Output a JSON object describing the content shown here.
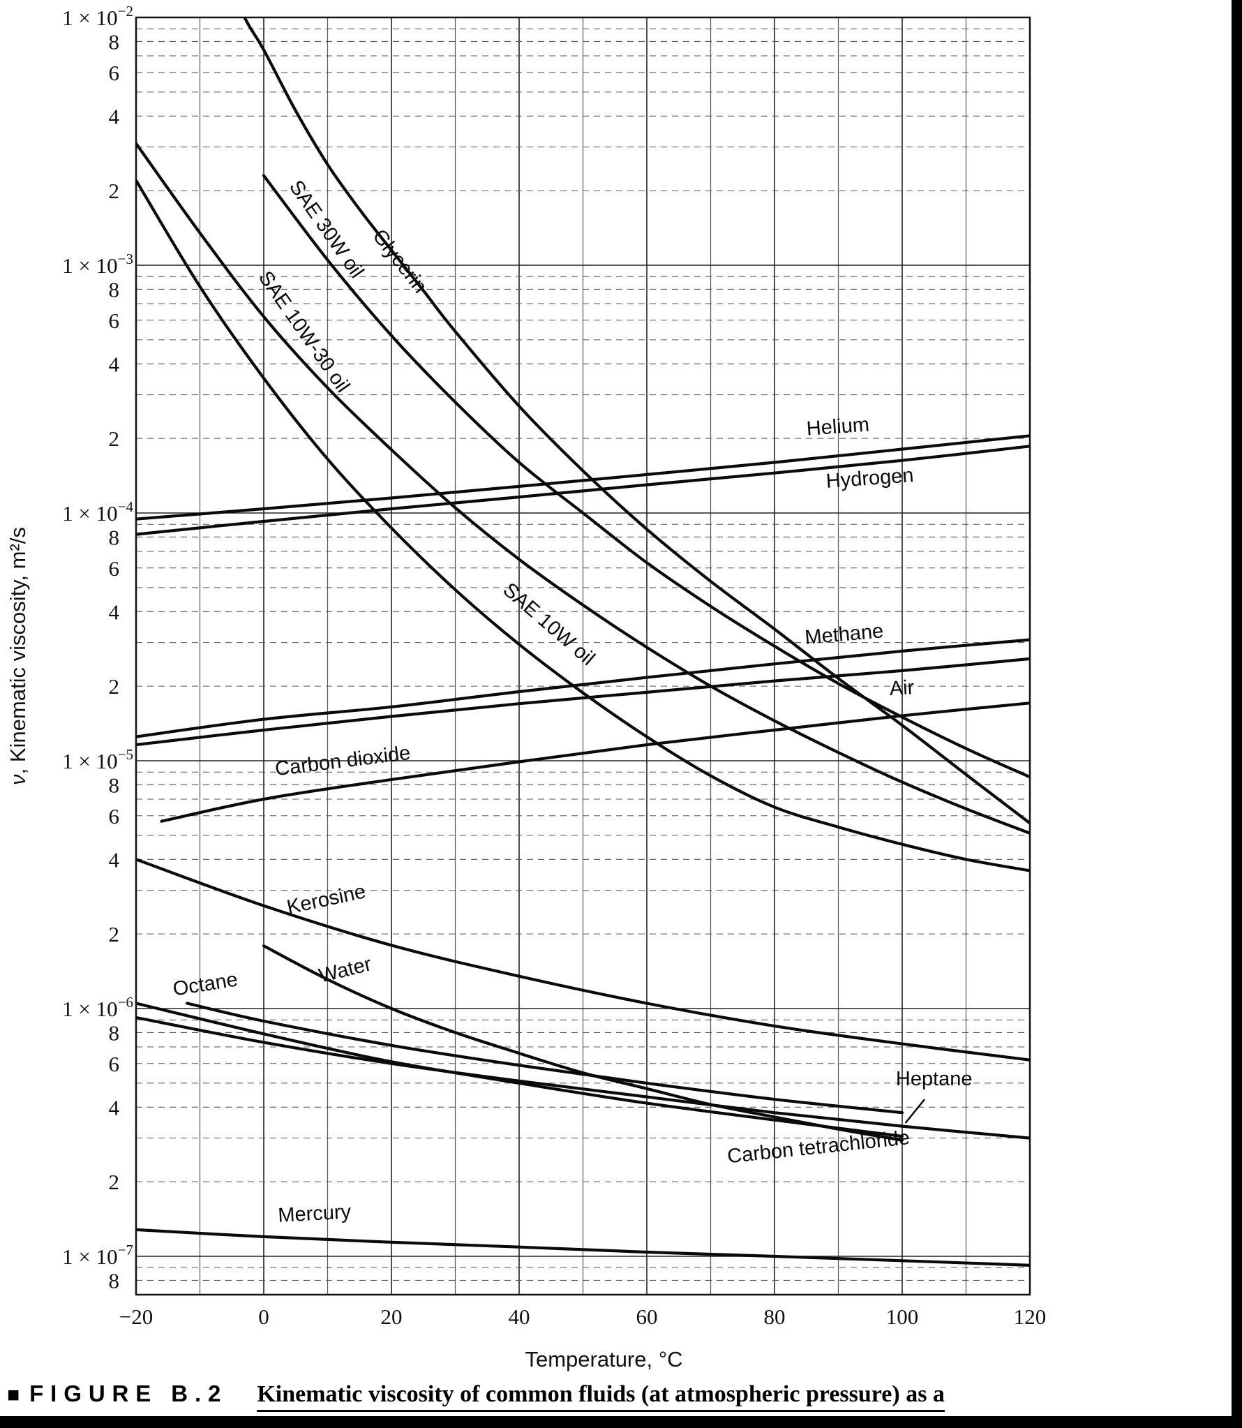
{
  "figure": {
    "caption_bullet": "■",
    "caption_label": "FIGURE B.2",
    "caption_text": "Kinematic viscosity of common fluids (at atmospheric pressure) as a"
  },
  "chart_data": {
    "type": "line",
    "title": "",
    "xlabel": "Temperature, °C",
    "ylabel": "ν, Kinematic viscosity, m²/s",
    "ylabel_symbol": "ν",
    "ylabel_rest": ", Kinematic viscosity, m²/s",
    "x_range": [
      -20,
      120
    ],
    "x_ticks": [
      -20,
      0,
      20,
      40,
      60,
      80,
      100,
      120
    ],
    "y_scale": "log",
    "y_range": [
      7e-08,
      0.01
    ],
    "y_decade_exponents": [
      -2,
      -3,
      -4,
      -5,
      -6,
      -7
    ],
    "y_minor_tick_labels": [
      8,
      6,
      4,
      2
    ],
    "grid": true,
    "legend": "inline-labels",
    "series": [
      {
        "name": "Glycerin",
        "label": {
          "t": 20.5,
          "v": 0.001,
          "rotate": 52
        },
        "points": [
          [
            -6,
            0.0155
          ],
          [
            -3,
            0.01
          ],
          [
            0,
            0.0074
          ],
          [
            5,
            0.0042
          ],
          [
            10,
            0.00255
          ],
          [
            15,
            0.00168
          ],
          [
            20,
            0.00115
          ],
          [
            25,
            0.00079
          ],
          [
            30,
            0.00054
          ],
          [
            40,
            0.00027
          ],
          [
            50,
            0.000148
          ],
          [
            60,
            8.6e-05
          ],
          [
            70,
            5.3e-05
          ],
          [
            80,
            3.4e-05
          ],
          [
            90,
            2.15e-05
          ],
          [
            100,
            1.39e-05
          ],
          [
            110,
            8.8e-06
          ],
          [
            120,
            5.6e-06
          ]
        ]
      },
      {
        "name": "SAE 30W oil",
        "label": {
          "t": 9,
          "v": 0.00135,
          "rotate": 55
        },
        "points": [
          [
            0,
            0.0023
          ],
          [
            10,
            0.00105
          ],
          [
            20,
            0.00052
          ],
          [
            30,
            0.00028
          ],
          [
            40,
            0.00016
          ],
          [
            50,
            0.0001
          ],
          [
            60,
            6.3e-05
          ],
          [
            70,
            4.2e-05
          ],
          [
            80,
            2.9e-05
          ],
          [
            90,
            2.05e-05
          ],
          [
            100,
            1.5e-05
          ],
          [
            110,
            1.12e-05
          ],
          [
            120,
            8.6e-06
          ]
        ]
      },
      {
        "name": "SAE 10W-30 oil",
        "label": {
          "t": 5.5,
          "v": 0.00052,
          "rotate": 55
        },
        "points": [
          [
            -20,
            0.0031
          ],
          [
            -10,
            0.00135
          ],
          [
            0,
            0.00062
          ],
          [
            10,
            0.00032
          ],
          [
            20,
            0.00018
          ],
          [
            30,
            0.000105
          ],
          [
            40,
            6.5e-05
          ],
          [
            50,
            4.25e-05
          ],
          [
            60,
            2.87e-05
          ],
          [
            70,
            2e-05
          ],
          [
            80,
            1.45e-05
          ],
          [
            90,
            1.08e-05
          ],
          [
            100,
            8.2e-06
          ],
          [
            110,
            6.4e-06
          ],
          [
            120,
            5.1e-06
          ]
        ]
      },
      {
        "name": "SAE 10W oil",
        "label": {
          "t": 44,
          "v": 3.4e-05,
          "rotate": 41
        },
        "points": [
          [
            -20,
            0.0022
          ],
          [
            -10,
            0.00082
          ],
          [
            0,
            0.00035
          ],
          [
            10,
            0.000165
          ],
          [
            20,
            8.7e-05
          ],
          [
            30,
            4.9e-05
          ],
          [
            40,
            2.95e-05
          ],
          [
            50,
            1.88e-05
          ],
          [
            60,
            1.25e-05
          ],
          [
            70,
            8.7e-06
          ],
          [
            80,
            6.5e-06
          ],
          [
            90,
            5.4e-06
          ],
          [
            100,
            4.6e-06
          ],
          [
            110,
            4e-06
          ],
          [
            120,
            3.6e-06
          ]
        ]
      },
      {
        "name": "Helium",
        "label": {
          "t": 90,
          "v": 0.00021,
          "rotate": -4
        },
        "points": [
          [
            -20,
            9.45e-05
          ],
          [
            0,
            0.000104
          ],
          [
            20,
            0.000115
          ],
          [
            40,
            0.000128
          ],
          [
            60,
            0.000143
          ],
          [
            80,
            0.00016
          ],
          [
            100,
            0.000181
          ],
          [
            120,
            0.000205
          ]
        ]
      },
      {
        "name": "Hydrogen",
        "label": {
          "t": 95,
          "v": 0.00013,
          "rotate": -4
        },
        "points": [
          [
            -20,
            8.2e-05
          ],
          [
            0,
            9.25e-05
          ],
          [
            20,
            0.000104
          ],
          [
            40,
            0.000116
          ],
          [
            60,
            0.00013
          ],
          [
            80,
            0.000145
          ],
          [
            100,
            0.000163
          ],
          [
            120,
            0.000186
          ]
        ]
      },
      {
        "name": "Methane",
        "label": {
          "t": 91,
          "v": 3.05e-05,
          "rotate": -5
        },
        "points": [
          [
            -20,
            1.25e-05
          ],
          [
            0,
            1.47e-05
          ],
          [
            20,
            1.65e-05
          ],
          [
            40,
            1.9e-05
          ],
          [
            60,
            2.17e-05
          ],
          [
            80,
            2.46e-05
          ],
          [
            100,
            2.77e-05
          ],
          [
            120,
            3.08e-05
          ]
        ]
      },
      {
        "name": "Air",
        "label": {
          "t": 100,
          "v": 1.85e-05,
          "rotate": -3
        },
        "points": [
          [
            -20,
            1.16e-05
          ],
          [
            0,
            1.33e-05
          ],
          [
            20,
            1.51e-05
          ],
          [
            40,
            1.7e-05
          ],
          [
            60,
            1.89e-05
          ],
          [
            80,
            2.1e-05
          ],
          [
            100,
            2.31e-05
          ],
          [
            120,
            2.58e-05
          ]
        ]
      },
      {
        "name": "Carbon dioxide",
        "label": {
          "t": 12.5,
          "v": 9.4e-06,
          "rotate": -7
        },
        "points": [
          [
            -16,
            5.7e-06
          ],
          [
            0,
            7e-06
          ],
          [
            20,
            8.4e-06
          ],
          [
            40,
            9.9e-06
          ],
          [
            60,
            1.16e-05
          ],
          [
            80,
            1.33e-05
          ],
          [
            100,
            1.52e-05
          ],
          [
            120,
            1.71e-05
          ]
        ]
      },
      {
        "name": "Kerosine",
        "label": {
          "t": 10,
          "v": 2.6e-06,
          "rotate": -12
        },
        "points": [
          [
            -20,
            4e-06
          ],
          [
            0,
            2.6e-06
          ],
          [
            20,
            1.8e-06
          ],
          [
            40,
            1.35e-06
          ],
          [
            60,
            1.05e-06
          ],
          [
            80,
            8.5e-07
          ],
          [
            100,
            7.2e-07
          ],
          [
            120,
            6.2e-07
          ]
        ]
      },
      {
        "name": "Water",
        "label": {
          "t": 13,
          "v": 1.35e-06,
          "rotate": -14
        },
        "points": [
          [
            0,
            1.79e-06
          ],
          [
            10,
            1.31e-06
          ],
          [
            20,
            1e-06
          ],
          [
            30,
            8e-07
          ],
          [
            40,
            6.6e-07
          ],
          [
            50,
            5.5e-07
          ],
          [
            60,
            4.75e-07
          ],
          [
            70,
            4.1e-07
          ],
          [
            80,
            3.65e-07
          ],
          [
            90,
            3.26e-07
          ],
          [
            100,
            2.94e-07
          ]
        ]
      },
      {
        "name": "Octane",
        "label": {
          "t": -9,
          "v": 1.18e-06,
          "rotate": -9
        },
        "points": [
          [
            -12,
            1.05e-06
          ],
          [
            0,
            8.9e-07
          ],
          [
            20,
            7.1e-07
          ],
          [
            40,
            5.9e-07
          ],
          [
            60,
            5e-07
          ],
          [
            80,
            4.3e-07
          ],
          [
            100,
            3.8e-07
          ]
        ]
      },
      {
        "name": "Heptane",
        "label": {
          "t": 105,
          "v": 4.9e-07,
          "rotate": 0
        },
        "points": [
          [
            -20,
            9.2e-07
          ],
          [
            0,
            7.3e-07
          ],
          [
            20,
            6e-07
          ],
          [
            40,
            5.1e-07
          ],
          [
            60,
            4.4e-07
          ],
          [
            80,
            3.8e-07
          ],
          [
            100,
            3.35e-07
          ],
          [
            120,
            3e-07
          ]
        ]
      },
      {
        "name": "Carbon tetrachloride",
        "label": {
          "t": 87,
          "v": 2.6e-07,
          "rotate": -6
        },
        "points": [
          [
            -20,
            1.05e-06
          ],
          [
            0,
            7.9e-07
          ],
          [
            20,
            6.1e-07
          ],
          [
            40,
            5e-07
          ],
          [
            60,
            4.15e-07
          ],
          [
            80,
            3.55e-07
          ],
          [
            100,
            3.05e-07
          ]
        ]
      },
      {
        "name": "Mercury",
        "label": {
          "t": 8,
          "v": 1.4e-07,
          "rotate": -3
        },
        "points": [
          [
            -20,
            1.28e-07
          ],
          [
            0,
            1.2e-07
          ],
          [
            20,
            1.14e-07
          ],
          [
            40,
            1.09e-07
          ],
          [
            60,
            1.04e-07
          ],
          [
            80,
            1e-07
          ],
          [
            100,
            9.6e-08
          ],
          [
            120,
            9.2e-08
          ]
        ]
      }
    ],
    "annotations": [
      {
        "type": "pointer",
        "series": "Heptane",
        "from": [
          103.5,
          4.3e-07
        ],
        "to": [
          100.5,
          3.45e-07
        ]
      }
    ]
  }
}
